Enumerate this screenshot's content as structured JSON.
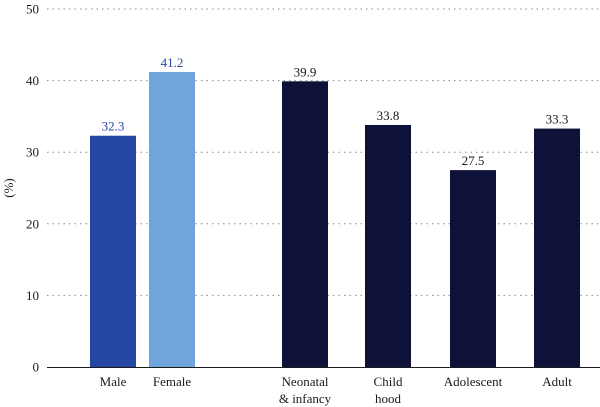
{
  "chart_data": {
    "type": "bar",
    "title": "",
    "xlabel": "",
    "ylabel": "(%)",
    "ylim": [
      0,
      50
    ],
    "yticks": [
      0,
      10,
      20,
      30,
      40,
      50
    ],
    "grid": true,
    "categories": [
      {
        "lines": [
          "Male"
        ],
        "value": 32.3,
        "label": "32.3",
        "color": "#2547a3",
        "label_color": "#2547a3"
      },
      {
        "lines": [
          "Female"
        ],
        "value": 41.2,
        "label": "41.2",
        "color": "#70a5dc",
        "label_color": "#2547a3"
      },
      {
        "lines": [
          "Neonatal",
          "& infancy"
        ],
        "value": 39.9,
        "label": "39.9",
        "color": "#0e1238",
        "label_color": "#1a1a1a"
      },
      {
        "lines": [
          "Child",
          "hood"
        ],
        "value": 33.8,
        "label": "33.8",
        "color": "#0e1238",
        "label_color": "#1a1a1a"
      },
      {
        "lines": [
          "Adolescent"
        ],
        "value": 27.5,
        "label": "27.5",
        "color": "#0e1238",
        "label_color": "#1a1a1a"
      },
      {
        "lines": [
          "Adult"
        ],
        "value": 33.3,
        "label": "33.3",
        "color": "#0e1238",
        "label_color": "#1a1a1a"
      }
    ]
  }
}
